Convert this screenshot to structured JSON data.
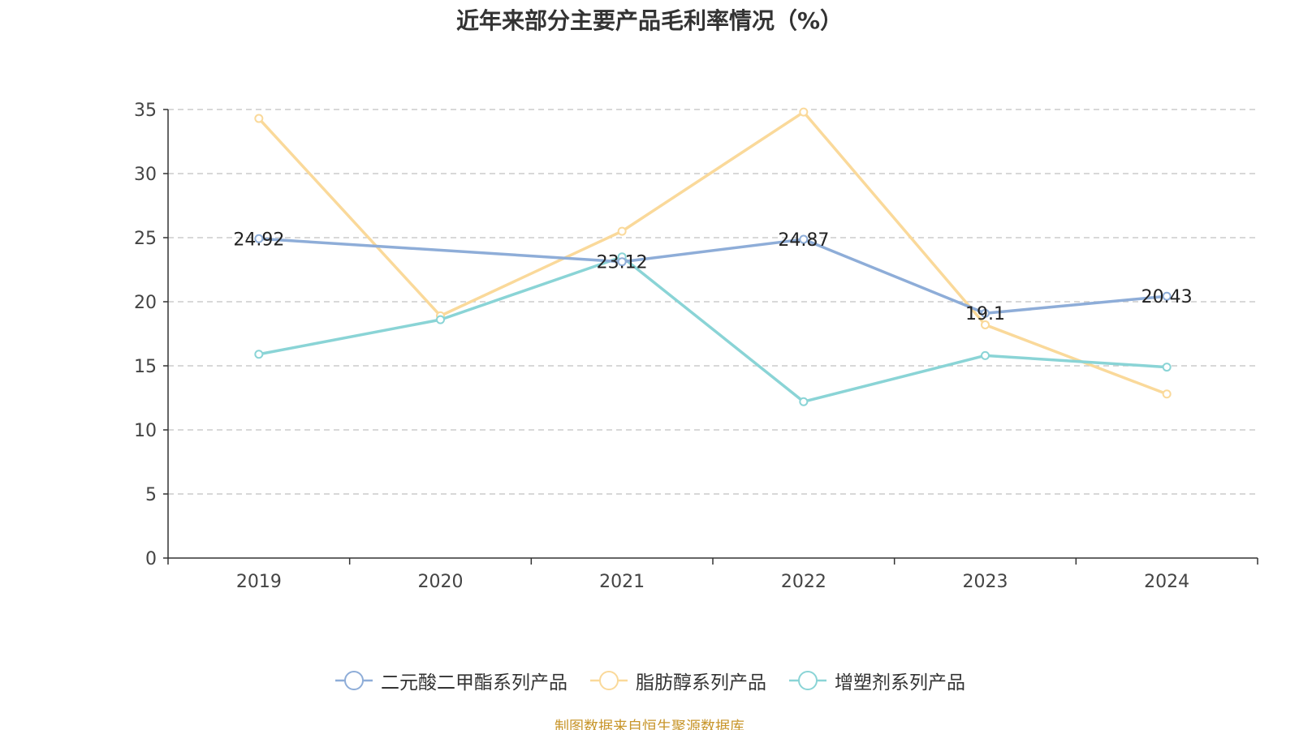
{
  "chart_data": {
    "type": "line",
    "title": "近年来部分主要产品毛利率情况（%）",
    "x": [
      "2019",
      "2020",
      "2021",
      "2022",
      "2023",
      "2024"
    ],
    "ylim": [
      0,
      35
    ],
    "yticks": [
      0,
      5,
      10,
      15,
      20,
      25,
      30,
      35
    ],
    "grid": true,
    "legend_position": "bottom",
    "series": [
      {
        "name": "二元酸二甲酯系列产品",
        "color": "#8eadd8",
        "values": [
          24.92,
          null,
          23.12,
          24.87,
          19.1,
          20.43
        ],
        "labels": [
          "24.92",
          "",
          "23.12",
          "24.87",
          "19.1",
          "20.43"
        ]
      },
      {
        "name": "脂肪醇系列产品",
        "color": "#fad99a",
        "values": [
          34.3,
          18.9,
          25.5,
          34.8,
          18.2,
          12.8
        ],
        "labels": [
          "",
          "",
          "",
          "",
          "",
          ""
        ]
      },
      {
        "name": "增塑剂系列产品",
        "color": "#8ad4d6",
        "values": [
          15.9,
          18.6,
          23.5,
          12.2,
          15.8,
          14.9
        ],
        "labels": [
          "",
          "",
          "",
          "",
          "",
          ""
        ]
      }
    ]
  },
  "source_note": "制图数据来自恒生聚源数据库"
}
